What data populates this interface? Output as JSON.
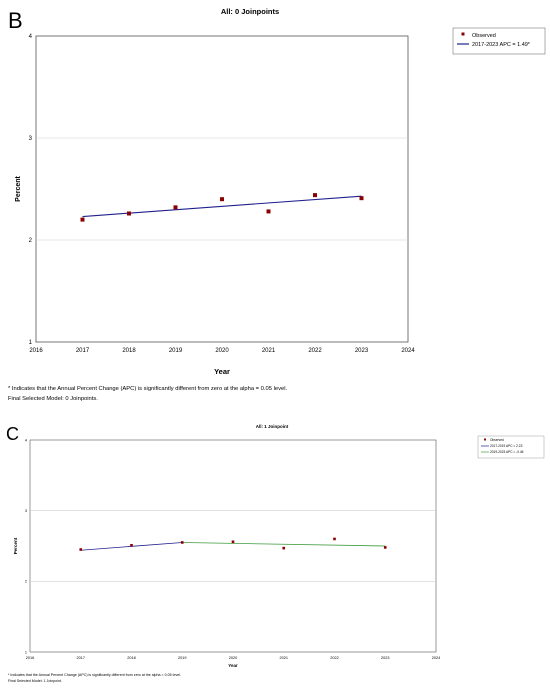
{
  "panels": [
    {
      "letter": "B",
      "title": "All: 0 Joinpoints",
      "footnote_1": "* Indicates that the Annual Percent Change (APC) is significantly different from zero at the alpha = 0.05 level.",
      "footnote_2": "Final Selected Model: 0 Joinpoints."
    },
    {
      "letter": "C",
      "title": "All: 1 Joinpoint",
      "footnote_1": "* Indicates that the Annual Percent Change (APC) is significantly different from zero at the alpha = 0.05 level.",
      "footnote_2": "Final Selected Model: 1 Joinpoint."
    }
  ],
  "colors": {
    "observed": "#8b0000",
    "fit_1": "#1f1f8f",
    "fit_2": "#3c9a3c",
    "grid": "#cfcfcf",
    "frame": "#555555"
  },
  "chart_data": [
    {
      "type": "line",
      "title": "All: 0 Joinpoints",
      "xlabel": "Year",
      "ylabel": "Percent",
      "xlim": [
        2016,
        2024
      ],
      "ylim": [
        1,
        4
      ],
      "x_ticks": [
        "2016",
        "2017",
        "2018",
        "2019",
        "2020",
        "2021",
        "2022",
        "2023",
        "2024"
      ],
      "y_ticks": [
        "1",
        "2",
        "3",
        "4"
      ],
      "grid": true,
      "legend_position": "outside-top-right",
      "observed": {
        "name": "Observed",
        "x": [
          2017,
          2018,
          2019,
          2020,
          2021,
          2022,
          2023
        ],
        "y": [
          2.2,
          2.26,
          2.32,
          2.4,
          2.28,
          2.44,
          2.41
        ]
      },
      "series": [
        {
          "name": "2017-2023 APC = 1.49*",
          "x": [
            2017,
            2023
          ],
          "y": [
            2.23,
            2.43
          ]
        }
      ]
    },
    {
      "type": "line",
      "title": "All: 1 Joinpoint",
      "xlabel": "Year",
      "ylabel": "Percent",
      "xlim": [
        2016,
        2024
      ],
      "ylim": [
        1,
        4
      ],
      "x_ticks": [
        "2016",
        "2017",
        "2018",
        "2019",
        "2020",
        "2021",
        "2022",
        "2023",
        "2024"
      ],
      "y_ticks": [
        "1",
        "2",
        "3",
        "4"
      ],
      "grid": true,
      "legend_position": "outside-top-right",
      "observed": {
        "name": "Observed",
        "x": [
          2017,
          2018,
          2019,
          2020,
          2021,
          2022,
          2023
        ],
        "y": [
          2.45,
          2.51,
          2.55,
          2.56,
          2.47,
          2.6,
          2.48
        ]
      },
      "series": [
        {
          "name": "2017-2019 APC = 2.23",
          "x": [
            2017,
            2019
          ],
          "y": [
            2.44,
            2.55
          ]
        },
        {
          "name": "2019-2023 APC = -0.46",
          "x": [
            2019,
            2023
          ],
          "y": [
            2.55,
            2.5
          ]
        }
      ]
    }
  ]
}
